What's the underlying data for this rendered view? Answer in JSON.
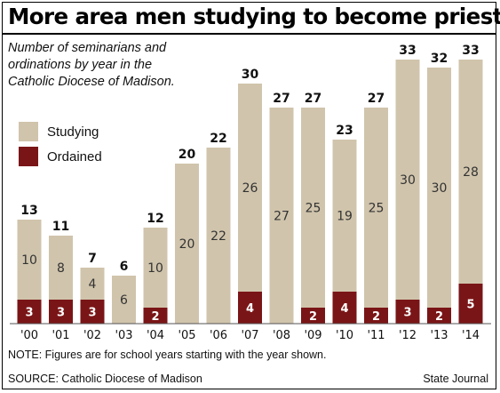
{
  "headline": "More area men studying to become priests",
  "subtitle": "Number of seminarians and ordinations by year in the Catholic Diocese of Madison.",
  "legend": {
    "studying": "Studying",
    "ordained": "Ordained"
  },
  "note": "NOTE: Figures are for school years starting with the year shown.",
  "source": "SOURCE: Catholic Diocese of Madison",
  "credit": "State Journal",
  "colors": {
    "studying": "#d0c4ac",
    "ordained": "#7a1517"
  },
  "chart_data": {
    "type": "bar",
    "stacked": true,
    "categories": [
      "'00",
      "'01",
      "'02",
      "'03",
      "'04",
      "'05",
      "'06",
      "'07",
      "'08",
      "'09",
      "'10",
      "'11",
      "'12",
      "'13",
      "'14"
    ],
    "series": [
      {
        "name": "Ordained",
        "values": [
          3,
          3,
          3,
          0,
          2,
          0,
          0,
          4,
          0,
          2,
          4,
          2,
          3,
          2,
          5
        ]
      },
      {
        "name": "Studying",
        "values": [
          10,
          8,
          4,
          6,
          10,
          20,
          22,
          26,
          27,
          25,
          19,
          25,
          30,
          30,
          28
        ]
      }
    ],
    "totals": [
      13,
      11,
      7,
      6,
      12,
      20,
      22,
      30,
      27,
      27,
      23,
      27,
      33,
      32,
      33
    ],
    "ylim": [
      0,
      33
    ],
    "grid": false,
    "legend_position": "left"
  }
}
